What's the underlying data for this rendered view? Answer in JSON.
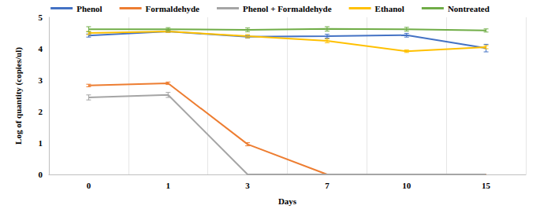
{
  "chart_data": {
    "type": "line",
    "x_label": "Days",
    "y_label": "Log of quantity (copies/ul)",
    "categories": [
      "0",
      "1",
      "3",
      "7",
      "10",
      "15"
    ],
    "series": [
      {
        "name": "Phenol",
        "color": "#4472c4",
        "values": [
          4.42,
          4.55,
          4.38,
          4.4,
          4.43,
          4.02
        ],
        "errors": [
          0.05,
          0.03,
          0.04,
          0.06,
          0.06,
          0.12
        ]
      },
      {
        "name": "Formaldehyde",
        "color": "#ed7d31",
        "values": [
          2.83,
          2.9,
          0.96,
          0,
          0,
          0
        ],
        "errors": [
          0.04,
          0.04,
          0.05,
          0,
          0,
          0
        ]
      },
      {
        "name": "Phenol + Formaldehyde",
        "color": "#a5a5a5",
        "values": [
          2.45,
          2.53,
          0,
          0,
          0,
          0
        ],
        "errors": [
          0.08,
          0.08,
          0,
          0,
          0,
          0
        ]
      },
      {
        "name": "Ethanol",
        "color": "#ffc000",
        "values": [
          4.5,
          4.55,
          4.4,
          4.25,
          3.92,
          4.05
        ],
        "errors": [
          0.05,
          0.03,
          0.05,
          0.06,
          0.04,
          0.05
        ]
      },
      {
        "name": "Nontreated",
        "color": "#70ad47",
        "values": [
          4.62,
          4.62,
          4.6,
          4.63,
          4.62,
          4.58
        ],
        "errors": [
          0.08,
          0.05,
          0.06,
          0.07,
          0.06,
          0.05
        ]
      }
    ],
    "ylim": [
      0,
      5
    ],
    "yticks": [
      0,
      1,
      2,
      3,
      4,
      5
    ],
    "grid": true,
    "legend": "top"
  }
}
